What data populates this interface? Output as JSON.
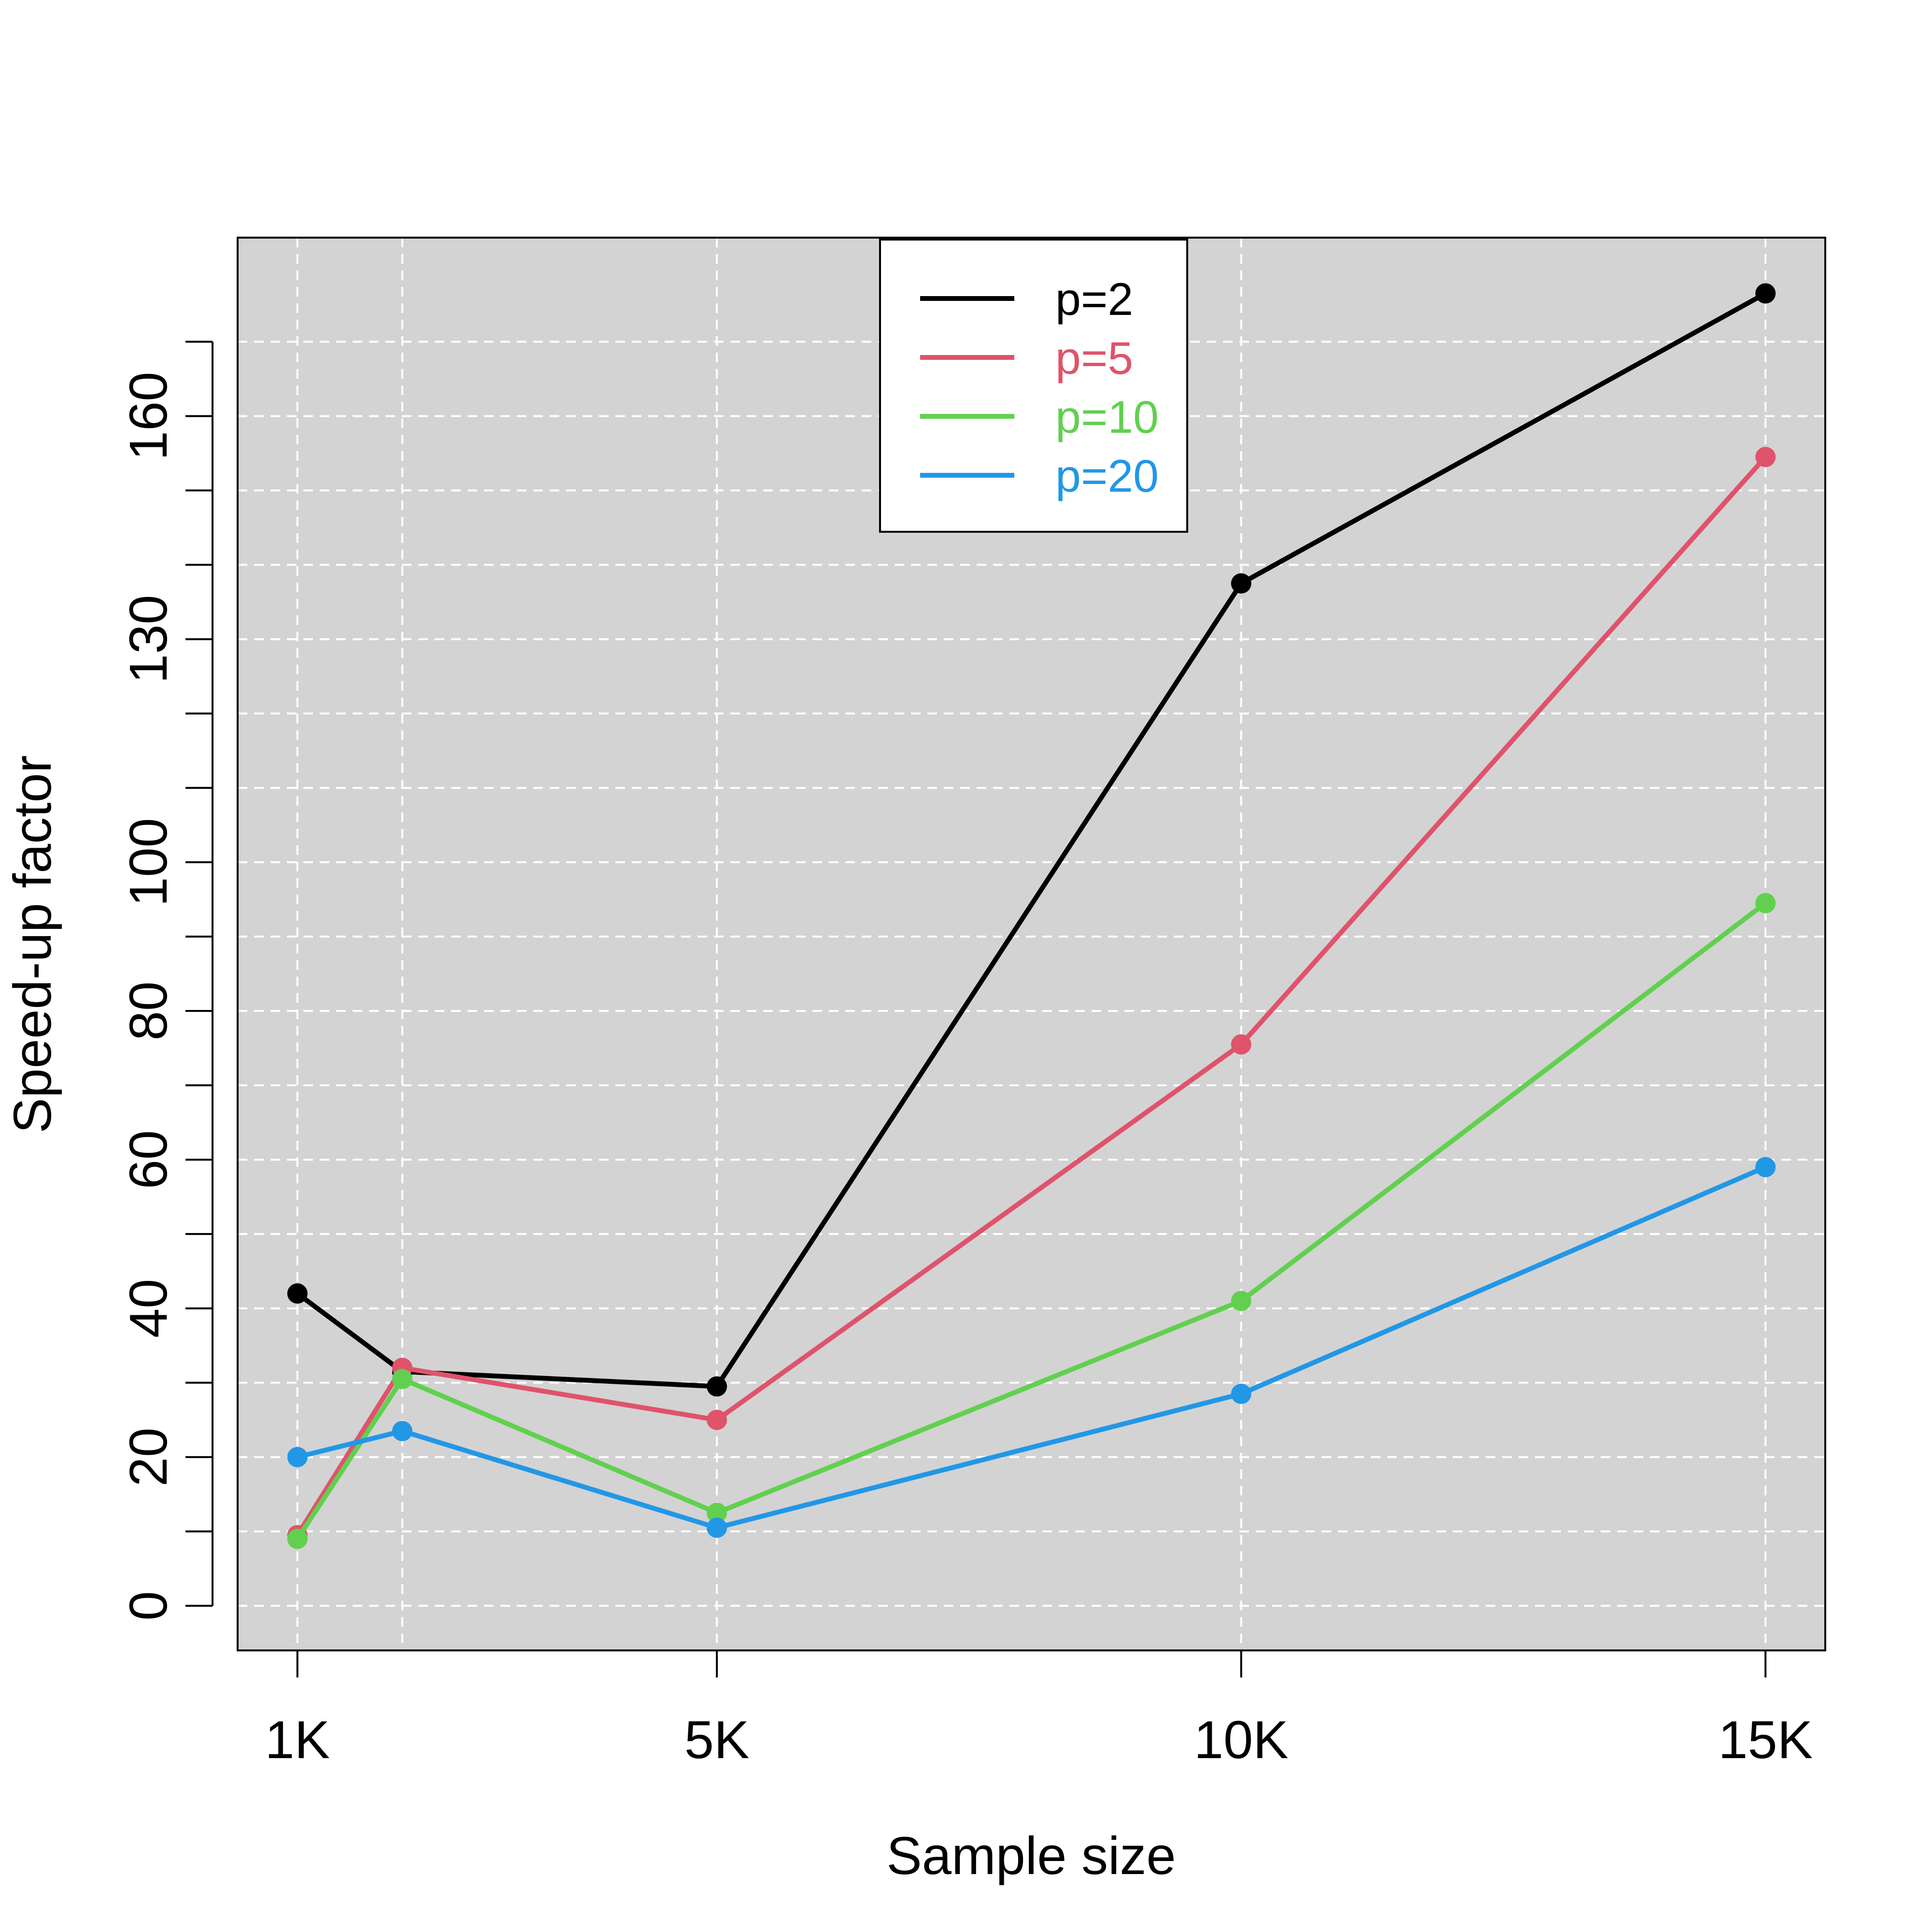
{
  "chart_data": {
    "type": "line",
    "title": "",
    "xlabel": "Sample size",
    "ylabel": "Speed-up factor",
    "x": [
      1000,
      2000,
      5000,
      10000,
      15000
    ],
    "x_tick_values": [
      1000,
      5000,
      10000,
      15000
    ],
    "x_tick_labels": [
      "1K",
      "5K",
      "10K",
      "15K"
    ],
    "x_grid_values": [
      1000,
      2000,
      5000,
      10000,
      15000
    ],
    "xlim": [
      430,
      15570
    ],
    "y_tick_values": [
      0,
      20,
      40,
      60,
      80,
      100,
      130,
      160
    ],
    "y_tick_labels": [
      "0",
      "20",
      "40",
      "60",
      "80",
      "100",
      "130",
      "160"
    ],
    "y_grid_values": [
      0,
      10,
      20,
      30,
      40,
      50,
      60,
      70,
      80,
      90,
      100,
      110,
      120,
      130,
      140,
      150,
      160,
      170
    ],
    "ylim": [
      -6,
      184
    ],
    "grid": true,
    "grid_style": "dashed white",
    "background": "#d3d3d3",
    "legend_position": "top-center",
    "series": [
      {
        "name": "p=2",
        "color": "#000000",
        "values": [
          42,
          31.5,
          29.5,
          137.5,
          176.5
        ]
      },
      {
        "name": "p=5",
        "color": "#df536b",
        "values": [
          9.5,
          32,
          25,
          75.5,
          154.5
        ]
      },
      {
        "name": "p=10",
        "color": "#61d04f",
        "values": [
          9,
          30.5,
          12.5,
          41,
          94.5
        ]
      },
      {
        "name": "p=20",
        "color": "#2297e6",
        "values": [
          20,
          23.5,
          10.5,
          28.5,
          59
        ]
      }
    ]
  }
}
